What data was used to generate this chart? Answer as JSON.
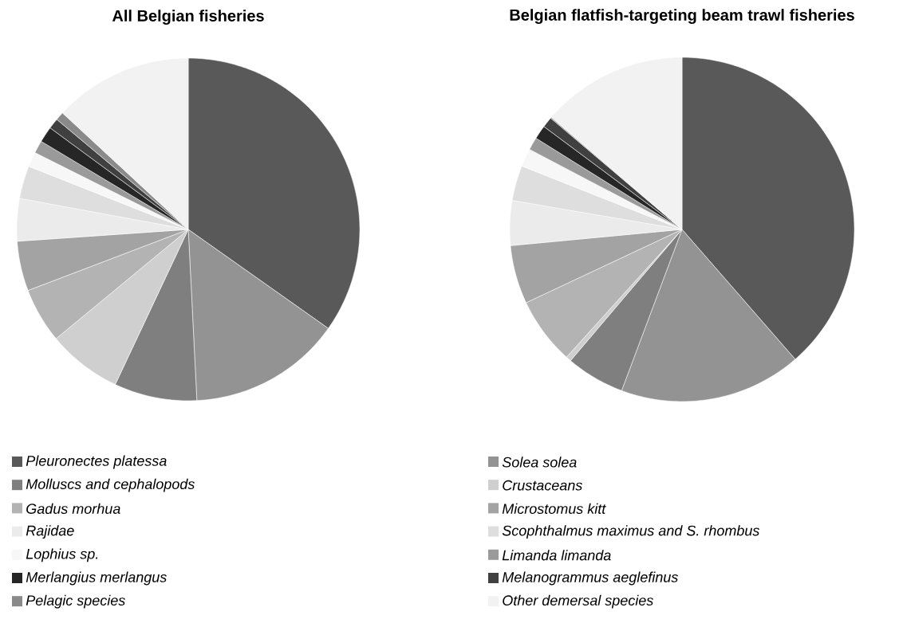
{
  "chart_data": [
    {
      "type": "pie",
      "title": "All Belgian fisheries",
      "legend": "bottom",
      "categories": [
        "Pleuronectes platessa",
        "Solea solea",
        "Molluscs and cephalopods",
        "Crustaceans",
        "Gadus morhua",
        "Microstomus kitt",
        "Rajidae",
        "Scophthalmus maximus and S. rhombus",
        "Lophius sp.",
        "Limanda limanda",
        "Merlangius merlangus",
        "Melanogrammus aeglefinus",
        "Pelagic species",
        "Other demersal species"
      ],
      "values": [
        34.8,
        14.4,
        7.8,
        7.0,
        5.2,
        4.7,
        4.0,
        3.1,
        1.4,
        1.2,
        1.5,
        1.0,
        0.8,
        13.1
      ],
      "colors": [
        "#595959",
        "#939393",
        "#7f7f7f",
        "#cfcfcf",
        "#b3b3b3",
        "#a3a3a3",
        "#ebebeb",
        "#dedede",
        "#f7f7f7",
        "#9a9a9a",
        "#262626",
        "#404040",
        "#8a8a8a",
        "#f2f2f2"
      ]
    },
    {
      "type": "pie",
      "title": "Belgian flatfish-targeting beam trawl fisheries",
      "categories": [
        null,
        null,
        null,
        null,
        null,
        null,
        null,
        null,
        null,
        null,
        null,
        null,
        null,
        null
      ],
      "values": [
        38.6,
        17.1,
        5.5,
        0.5,
        6.3,
        5.5,
        4.2,
        3.3,
        1.7,
        1.2,
        1.3,
        1.0,
        0.1,
        13.7
      ],
      "colors": [
        "#595959",
        "#939393",
        "#7f7f7f",
        "#cfcfcf",
        "#b3b3b3",
        "#a3a3a3",
        "#ebebeb",
        "#dedede",
        "#f7f7f7",
        "#9a9a9a",
        "#262626",
        "#404040",
        "#8a8a8a",
        "#f2f2f2"
      ]
    }
  ]
}
